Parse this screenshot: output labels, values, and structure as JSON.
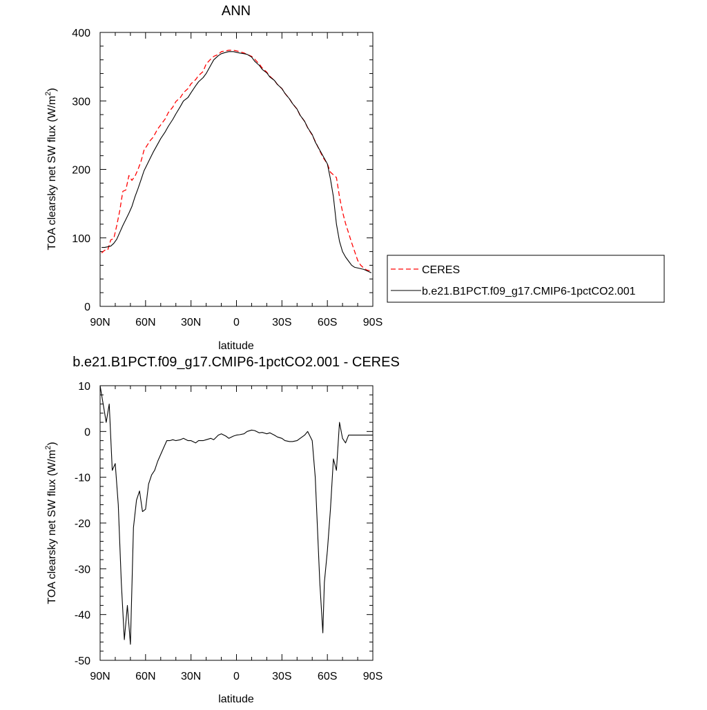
{
  "chart_data": [
    {
      "type": "line",
      "title": "ANN",
      "xlabel": "latitude",
      "ylabel": "TOA clearsky net SW flux (W/m",
      "ylabel_sup": "2",
      "ylabel_close": ")",
      "xlim": [
        90,
        -90
      ],
      "ylim": [
        0,
        400
      ],
      "xticks": [
        {
          "value": 90,
          "label": "90N"
        },
        {
          "value": 60,
          "label": "60N"
        },
        {
          "value": 30,
          "label": "30N"
        },
        {
          "value": 0,
          "label": "0"
        },
        {
          "value": -30,
          "label": "30S"
        },
        {
          "value": -60,
          "label": "60S"
        },
        {
          "value": -90,
          "label": "90S"
        }
      ],
      "yticks": [
        0,
        100,
        200,
        300,
        400
      ],
      "grid": false,
      "legend_position": "right",
      "series": [
        {
          "name": "CERES",
          "color": "#ff0000",
          "dash": true,
          "x": [
            89,
            87,
            85,
            83,
            81,
            79,
            77,
            75,
            73,
            71,
            69,
            67,
            65,
            63,
            61,
            59,
            57,
            55,
            52,
            50,
            47,
            45,
            42,
            40,
            37,
            35,
            32,
            30,
            27,
            25,
            22,
            20,
            17,
            15,
            12,
            10,
            7,
            5,
            2,
            0,
            -2,
            -5,
            -7,
            -10,
            -12,
            -15,
            -17,
            -20,
            -22,
            -25,
            -27,
            -30,
            -32,
            -35,
            -37,
            -40,
            -42,
            -45,
            -47,
            -50,
            -52,
            -55,
            -57,
            -60,
            -62,
            -64,
            -66,
            -68,
            -70,
            -72,
            -74,
            -76,
            -78,
            -80,
            -82,
            -84,
            -86,
            -88,
            -89
          ],
          "y": [
            78,
            82,
            82,
            97,
            99,
            118,
            140,
            168,
            170,
            191,
            184,
            190,
            200,
            212,
            228,
            235,
            242,
            247,
            259,
            265,
            274,
            283,
            291,
            299,
            305,
            312,
            318,
            325,
            331,
            337,
            343,
            354,
            361,
            365,
            368,
            372,
            373,
            374,
            374,
            373,
            372,
            370,
            368,
            365,
            361,
            354,
            348,
            342,
            336,
            330,
            324,
            318,
            311,
            303,
            296,
            288,
            279,
            270,
            261,
            250,
            241,
            227,
            218,
            208,
            196,
            192,
            188,
            160,
            138,
            121,
            107,
            93,
            80,
            67,
            60,
            56,
            53,
            52,
            49
          ]
        },
        {
          "name": "b.e21.B1PCT.f09_g17.CMIP6-1pctCO2.001",
          "color": "#000000",
          "dash": false,
          "x": [
            89,
            87,
            85,
            83,
            81,
            79,
            77,
            75,
            73,
            71,
            69,
            67,
            65,
            63,
            61,
            59,
            57,
            55,
            52,
            50,
            47,
            45,
            42,
            40,
            37,
            35,
            32,
            30,
            27,
            25,
            22,
            20,
            17,
            15,
            12,
            10,
            7,
            5,
            2,
            0,
            -2,
            -5,
            -7,
            -10,
            -12,
            -15,
            -17,
            -20,
            -22,
            -25,
            -27,
            -30,
            -32,
            -35,
            -37,
            -40,
            -42,
            -45,
            -47,
            -50,
            -52,
            -55,
            -57,
            -60,
            -62,
            -64,
            -66,
            -68,
            -70,
            -72,
            -74,
            -76,
            -78,
            -80,
            -82,
            -84,
            -86,
            -88,
            -89
          ],
          "y": [
            86,
            86,
            87,
            88,
            92,
            98,
            108,
            118,
            127,
            136,
            146,
            160,
            172,
            185,
            198,
            207,
            216,
            225,
            237,
            245,
            255,
            263,
            273,
            281,
            292,
            300,
            305,
            312,
            322,
            328,
            334,
            340,
            352,
            360,
            366,
            369,
            371,
            372,
            372,
            371,
            370,
            369,
            368,
            364,
            358,
            352,
            346,
            341,
            335,
            330,
            324,
            318,
            311,
            303,
            296,
            288,
            279,
            270,
            261,
            251,
            240,
            228,
            220,
            208,
            186,
            160,
            120,
            95,
            80,
            72,
            66,
            60,
            57,
            56,
            55,
            54,
            52,
            50,
            49
          ]
        }
      ]
    },
    {
      "type": "line",
      "title": "b.e21.B1PCT.f09_g17.CMIP6-1pctCO2.001 - CERES",
      "xlabel": "latitude",
      "ylabel": "TOA clearsky net SW flux (W/m",
      "ylabel_sup": "2",
      "ylabel_close": ")",
      "xlim": [
        90,
        -90
      ],
      "ylim": [
        -50,
        10
      ],
      "xticks": [
        {
          "value": 90,
          "label": "90N"
        },
        {
          "value": 60,
          "label": "60N"
        },
        {
          "value": 30,
          "label": "30N"
        },
        {
          "value": 0,
          "label": "0"
        },
        {
          "value": -30,
          "label": "30S"
        },
        {
          "value": -60,
          "label": "60S"
        },
        {
          "value": -90,
          "label": "90S"
        }
      ],
      "yticks": [
        -50,
        -40,
        -30,
        -20,
        -10,
        0,
        10
      ],
      "grid": false,
      "series": [
        {
          "color": "#000000",
          "dash": false,
          "x": [
            90,
            88,
            86,
            84,
            82,
            80,
            78,
            76,
            74,
            72,
            70,
            68,
            66,
            64,
            62,
            60,
            58,
            56,
            54,
            52,
            50,
            48,
            46,
            44,
            42,
            40,
            37,
            35,
            32,
            30,
            27,
            25,
            22,
            20,
            17,
            15,
            12,
            10,
            7,
            5,
            2,
            0,
            -2,
            -5,
            -7,
            -10,
            -12,
            -15,
            -17,
            -20,
            -22,
            -25,
            -27,
            -30,
            -32,
            -35,
            -37,
            -40,
            -42,
            -45,
            -47,
            -50,
            -52,
            -55,
            -57,
            -58,
            -60,
            -62,
            -64,
            -66,
            -68,
            -70,
            -72,
            -74,
            -76,
            -78,
            -80,
            -82,
            -84,
            -86,
            -88,
            -90
          ],
          "y": [
            10,
            6,
            2,
            6,
            -8.5,
            -7,
            -16,
            -33,
            -45.5,
            -38,
            -46.5,
            -21,
            -15,
            -13,
            -17.5,
            -17,
            -11.5,
            -9.5,
            -8.5,
            -6.5,
            -5,
            -3.5,
            -2,
            -2,
            -1.8,
            -2,
            -1.8,
            -1.5,
            -2,
            -2,
            -2.5,
            -2,
            -2,
            -1.8,
            -1.5,
            -1.8,
            -0.8,
            -0.5,
            -1,
            -1.5,
            -1,
            -0.8,
            -0.7,
            -0.5,
            0,
            0.3,
            0.2,
            -0.3,
            -0.2,
            -0.5,
            -0.3,
            -0.8,
            -1.2,
            -1.5,
            -2,
            -2.2,
            -2.2,
            -2,
            -1.5,
            -0.8,
            0,
            -2,
            -10,
            -33,
            -44,
            -33,
            -26,
            -17,
            -6,
            -8.5,
            2,
            -1.5,
            -2.5,
            -0.8,
            -0.8,
            -0.8,
            -0.8,
            -0.8,
            -0.8,
            -0.8,
            -0.8,
            -0.8
          ]
        }
      ]
    }
  ]
}
